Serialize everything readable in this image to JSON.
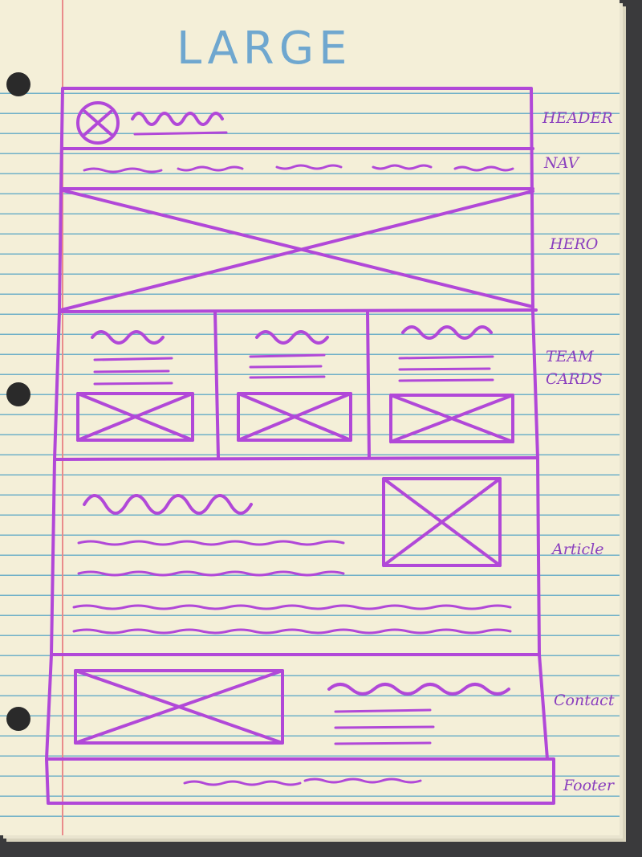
{
  "title": "LARGE",
  "ink_color": "#b148d8",
  "paper_color": "#f4efd8",
  "sections": [
    {
      "id": "header",
      "label": "HEADER"
    },
    {
      "id": "nav",
      "label": "NAV"
    },
    {
      "id": "hero",
      "label": "HERO"
    },
    {
      "id": "team-cards",
      "label": "TEAM CARDS"
    },
    {
      "id": "article",
      "label": "Article"
    },
    {
      "id": "contact",
      "label": "Contact"
    },
    {
      "id": "footer",
      "label": "Footer"
    }
  ]
}
